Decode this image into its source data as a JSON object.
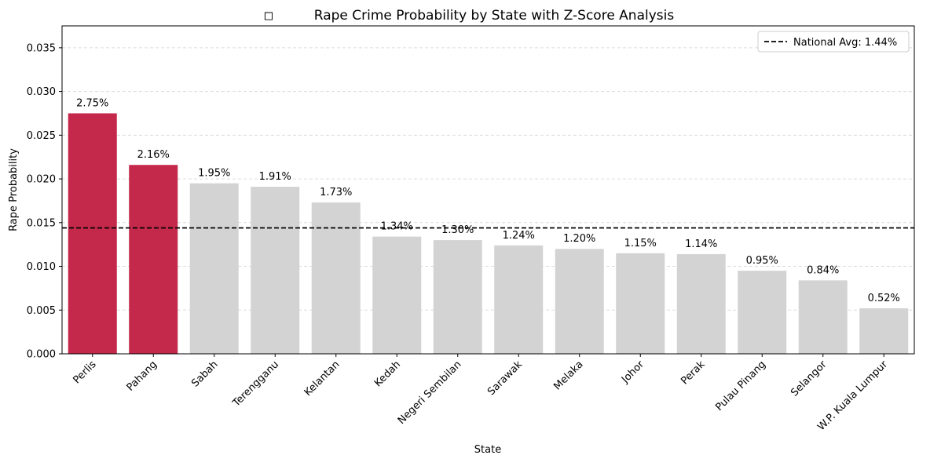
{
  "chart_data": {
    "type": "bar",
    "title_icon": "missing-glyph-box",
    "title": "Rape Crime Probability by State with Z-Score Analysis",
    "xlabel": "State",
    "ylabel": "Rape Probability",
    "ylim": [
      0,
      0.0375
    ],
    "yticks": [
      "0.000",
      "0.005",
      "0.010",
      "0.015",
      "0.020",
      "0.025",
      "0.030",
      "0.035"
    ],
    "grid": "y-dashed",
    "legend_position": "top-right",
    "categories": [
      "Perlis",
      "Pahang",
      "Sabah",
      "Terengganu",
      "Kelantan",
      "Kedah",
      "Negeri Sembilan",
      "Sarawak",
      "Melaka",
      "Johor",
      "Perak",
      "Pulau Pinang",
      "Selangor",
      "W.P. Kuala Lumpur"
    ],
    "values": [
      0.0275,
      0.0216,
      0.0195,
      0.0191,
      0.0173,
      0.0134,
      0.013,
      0.0124,
      0.012,
      0.0115,
      0.0114,
      0.0095,
      0.0084,
      0.0052
    ],
    "data_labels": [
      "2.75%",
      "2.16%",
      "1.95%",
      "1.91%",
      "1.73%",
      "1.34%",
      "1.30%",
      "1.24%",
      "1.20%",
      "1.15%",
      "1.14%",
      "0.95%",
      "0.84%",
      "0.52%"
    ],
    "highlighted": [
      true,
      true,
      false,
      false,
      false,
      false,
      false,
      false,
      false,
      false,
      false,
      false,
      false,
      false
    ],
    "reference_line": {
      "label": "National Avg: 1.44%",
      "value": 0.0144,
      "style": "dashed",
      "color": "#000000"
    },
    "colors": {
      "highlight": "#c4294b",
      "normal": "#d3d3d3"
    }
  }
}
